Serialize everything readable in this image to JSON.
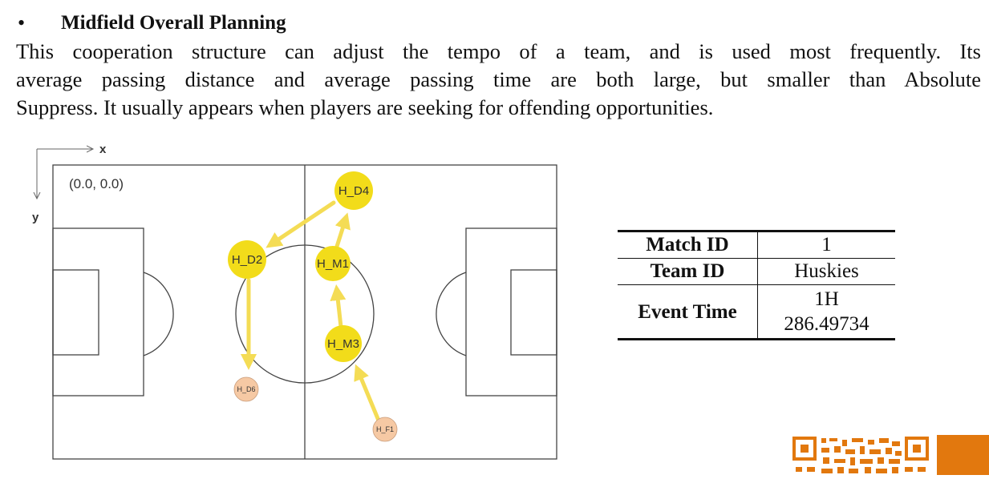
{
  "section": {
    "bullet": "•",
    "heading": "Midfield Overall Planning",
    "paragraph_lines": [
      "This cooperation structure can adjust the tempo of a team, and is used most frequently. Its",
      "average passing distance and average passing time are both large, but smaller than Absolute",
      "Suppress. It usually appears when players are seeking for offending opportunities."
    ]
  },
  "field": {
    "axis_x": "x",
    "axis_y": "y",
    "origin_label": "(0.0,  0.0)",
    "players": [
      {
        "id": "H_D4",
        "style": "major"
      },
      {
        "id": "H_D2",
        "style": "major"
      },
      {
        "id": "H_M1",
        "style": "major"
      },
      {
        "id": "H_M3",
        "style": "major"
      },
      {
        "id": "H_D6",
        "style": "minor"
      },
      {
        "id": "H_F1",
        "style": "minor"
      }
    ],
    "passes": [
      {
        "from": "H_F1",
        "to": "H_M3"
      },
      {
        "from": "H_M3",
        "to": "H_M1"
      },
      {
        "from": "H_M1",
        "to": "H_D4"
      },
      {
        "from": "H_D4",
        "to": "H_D2"
      },
      {
        "from": "H_D2",
        "to": "H_D6"
      }
    ],
    "colors": {
      "major": "#f2dc1a",
      "minor": "#f6c9a4",
      "arrow": "#f4dc55",
      "line": "#444444"
    }
  },
  "table": {
    "rows": [
      {
        "key": "Match ID",
        "value": "1"
      },
      {
        "key": "Team ID",
        "value": "Huskies"
      },
      {
        "key": "Event Time",
        "value_lines": [
          "1H",
          "286.49734"
        ]
      }
    ]
  },
  "corner": {
    "accent": "#e2780e"
  }
}
